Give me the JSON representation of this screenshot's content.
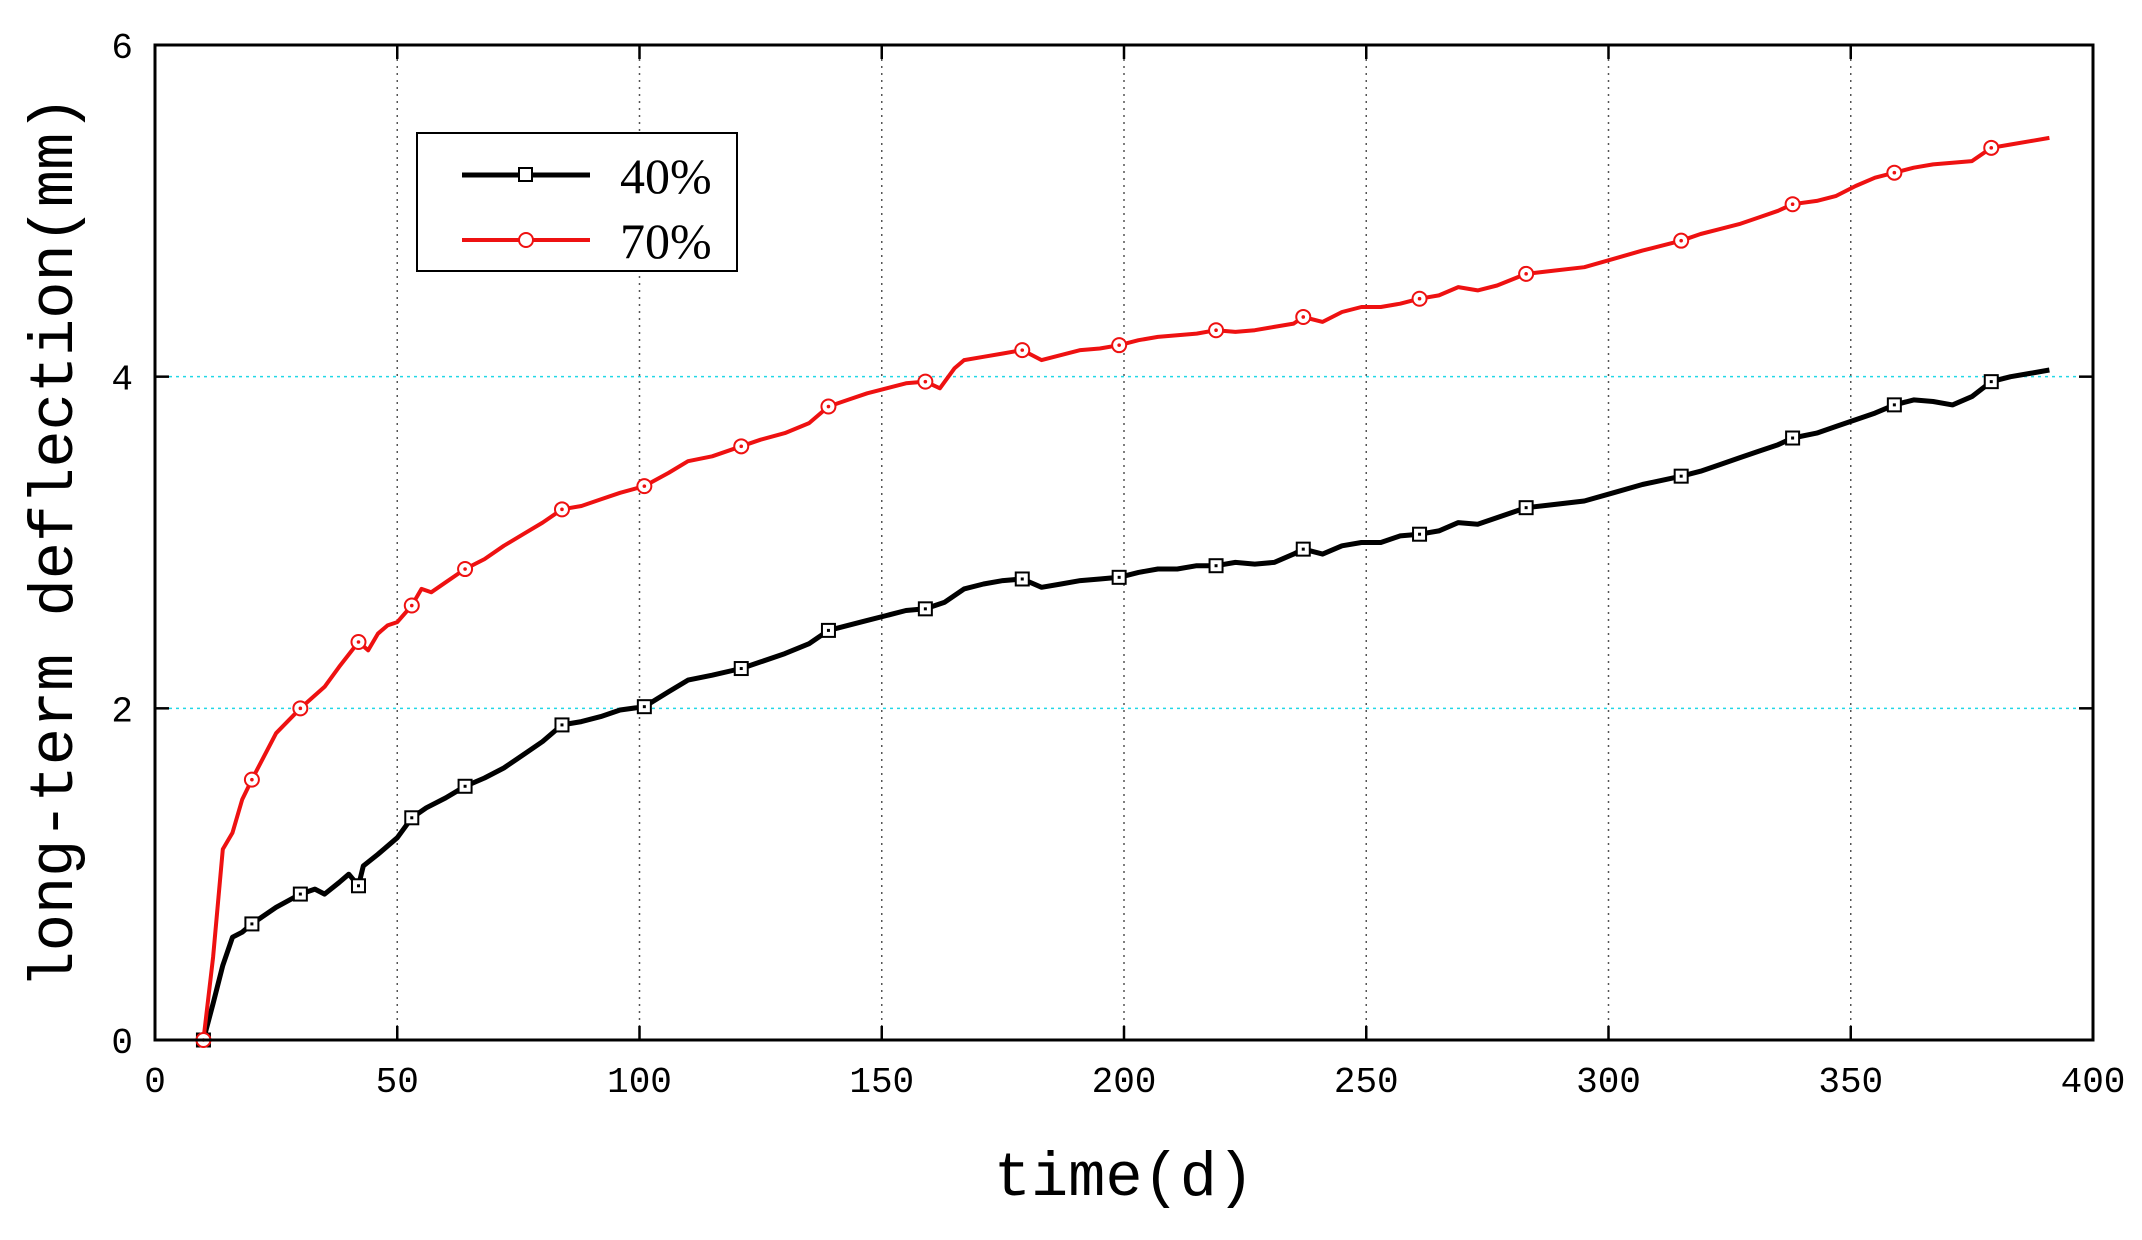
{
  "chart_data": {
    "type": "line",
    "title": "",
    "xlabel": "time(d)",
    "ylabel": "long-term deflection(mm)",
    "xlim": [
      0,
      400
    ],
    "ylim": [
      0,
      6
    ],
    "xticks": [
      0,
      50,
      100,
      150,
      200,
      250,
      300,
      350,
      400
    ],
    "yticks": [
      0,
      2,
      4,
      6
    ],
    "grid": {
      "x": "dotted",
      "y": "dotted-cyan"
    },
    "legend_position": "top-left",
    "series": [
      {
        "name": "40%",
        "color": "#000000",
        "marker": "square",
        "x": [
          10,
          12,
          14,
          16,
          18,
          20,
          25,
          30,
          33,
          35,
          38,
          40,
          42,
          43,
          46,
          50,
          53,
          56,
          60,
          64,
          68,
          72,
          76,
          80,
          84,
          88,
          92,
          96,
          101,
          106,
          110,
          115,
          121,
          125,
          130,
          135,
          139,
          143,
          147,
          151,
          155,
          159,
          163,
          167,
          171,
          175,
          179,
          183,
          187,
          191,
          195,
          199,
          203,
          207,
          211,
          215,
          219,
          223,
          227,
          231,
          235,
          237,
          241,
          245,
          249,
          253,
          257,
          261,
          265,
          269,
          273,
          277,
          283,
          289,
          295,
          301,
          307,
          315,
          319,
          323,
          327,
          331,
          335,
          338,
          343,
          347,
          351,
          355,
          359,
          363,
          367,
          371,
          375,
          379,
          383,
          387,
          391
        ],
        "y": [
          0.0,
          0.22,
          0.45,
          0.62,
          0.65,
          0.7,
          0.8,
          0.88,
          0.91,
          0.88,
          0.95,
          1.0,
          0.93,
          1.05,
          1.12,
          1.22,
          1.34,
          1.4,
          1.46,
          1.53,
          1.58,
          1.64,
          1.72,
          1.8,
          1.9,
          1.92,
          1.95,
          1.99,
          2.01,
          2.1,
          2.17,
          2.2,
          2.24,
          2.28,
          2.33,
          2.39,
          2.47,
          2.5,
          2.53,
          2.56,
          2.59,
          2.6,
          2.64,
          2.72,
          2.75,
          2.77,
          2.78,
          2.73,
          2.75,
          2.77,
          2.78,
          2.79,
          2.82,
          2.84,
          2.84,
          2.86,
          2.86,
          2.88,
          2.87,
          2.88,
          2.93,
          2.96,
          2.93,
          2.98,
          3.0,
          3.0,
          3.04,
          3.05,
          3.07,
          3.12,
          3.11,
          3.15,
          3.21,
          3.23,
          3.25,
          3.3,
          3.35,
          3.4,
          3.43,
          3.47,
          3.51,
          3.55,
          3.59,
          3.63,
          3.66,
          3.7,
          3.74,
          3.78,
          3.83,
          3.86,
          3.85,
          3.83,
          3.88,
          3.97,
          4.0,
          4.02,
          4.04
        ],
        "markers_x": [
          10,
          20,
          30,
          42,
          53,
          64,
          84,
          101,
          121,
          139,
          159,
          179,
          199,
          219,
          237,
          261,
          283,
          315,
          338,
          359,
          379
        ]
      },
      {
        "name": "70%",
        "color": "#ee1111",
        "marker": "circle",
        "x": [
          10,
          12,
          14,
          16,
          18,
          20,
          25,
          30,
          35,
          38,
          42,
          44,
          46,
          48,
          50,
          53,
          55,
          57,
          60,
          64,
          68,
          72,
          76,
          80,
          84,
          88,
          92,
          96,
          101,
          106,
          110,
          115,
          121,
          125,
          130,
          135,
          139,
          143,
          147,
          151,
          155,
          159,
          162,
          165,
          167,
          171,
          175,
          179,
          183,
          187,
          191,
          195,
          199,
          203,
          207,
          211,
          215,
          219,
          223,
          227,
          231,
          235,
          237,
          241,
          245,
          249,
          253,
          257,
          261,
          265,
          269,
          273,
          277,
          283,
          289,
          295,
          301,
          307,
          315,
          319,
          323,
          327,
          331,
          335,
          338,
          343,
          347,
          351,
          355,
          359,
          363,
          367,
          371,
          375,
          379,
          383,
          387,
          391
        ],
        "y": [
          0.0,
          0.5,
          1.15,
          1.25,
          1.45,
          1.57,
          1.85,
          2.0,
          2.13,
          2.25,
          2.4,
          2.35,
          2.45,
          2.5,
          2.52,
          2.62,
          2.72,
          2.7,
          2.76,
          2.84,
          2.9,
          2.98,
          3.05,
          3.12,
          3.2,
          3.22,
          3.26,
          3.3,
          3.34,
          3.42,
          3.49,
          3.52,
          3.58,
          3.62,
          3.66,
          3.72,
          3.82,
          3.86,
          3.9,
          3.93,
          3.96,
          3.97,
          3.93,
          4.05,
          4.1,
          4.12,
          4.14,
          4.16,
          4.1,
          4.13,
          4.16,
          4.17,
          4.19,
          4.22,
          4.24,
          4.25,
          4.26,
          4.28,
          4.27,
          4.28,
          4.3,
          4.32,
          4.36,
          4.33,
          4.39,
          4.42,
          4.42,
          4.44,
          4.47,
          4.49,
          4.54,
          4.52,
          4.55,
          4.62,
          4.64,
          4.66,
          4.71,
          4.76,
          4.82,
          4.86,
          4.89,
          4.92,
          4.96,
          5.0,
          5.04,
          5.06,
          5.09,
          5.15,
          5.2,
          5.23,
          5.26,
          5.28,
          5.29,
          5.3,
          5.38,
          5.4,
          5.42,
          5.44
        ],
        "markers_x": [
          10,
          20,
          30,
          42,
          53,
          64,
          84,
          101,
          121,
          139,
          159,
          179,
          199,
          219,
          237,
          261,
          283,
          315,
          338,
          359,
          379
        ]
      }
    ]
  },
  "legend": {
    "items": [
      {
        "label": "40%",
        "color": "#000000",
        "marker": "square"
      },
      {
        "label": "70%",
        "color": "#ee1111",
        "marker": "circle"
      }
    ]
  }
}
